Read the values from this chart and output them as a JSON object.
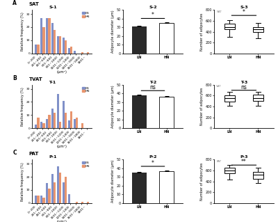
{
  "row_labels": [
    "A  SAT",
    "B  TVAT",
    "C  PAT"
  ],
  "row_letters": [
    "A",
    "B",
    "C"
  ],
  "row_tissues": [
    "SAT",
    "TVAT",
    "PAT"
  ],
  "col1_labels": [
    "S-1",
    "T-1",
    "P-1"
  ],
  "col2_labels": [
    "S-2",
    "T-2",
    "P-2"
  ],
  "col3_labels": [
    "S-3",
    "T-3",
    "P-3"
  ],
  "hist_categories": [
    "0~200",
    "201~400",
    "401~600",
    "601~800",
    "801~1000",
    "1001~1200",
    "1201~1400",
    "1401~1600",
    "1601~1800",
    "1801~"
  ],
  "LN_color": "#8090c8",
  "HN_color": "#e8956e",
  "hist_data": {
    "SAT": {
      "LN": [
        7,
        27,
        27,
        23,
        13,
        12,
        4,
        2,
        0,
        0
      ],
      "HN": [
        7,
        20,
        27,
        18,
        13,
        10,
        5,
        0,
        1,
        1
      ]
    },
    "TVAT": {
      "LN": [
        3,
        5,
        7,
        15,
        26,
        21,
        6,
        7,
        0,
        0
      ],
      "HN": [
        8,
        4,
        10,
        12,
        5,
        12,
        13,
        8,
        4,
        0
      ]
    },
    "PAT": {
      "LN": [
        6,
        6,
        15,
        22,
        28,
        16,
        7,
        0,
        0,
        0
      ],
      "HN": [
        6,
        4,
        11,
        16,
        23,
        20,
        0,
        1,
        1,
        1
      ]
    }
  },
  "bar_data": {
    "SAT": {
      "LN_mean": 31,
      "LN_err": 1.2,
      "HN_mean": 35,
      "HN_err": 0.8,
      "sig": "*",
      "ylim": [
        0,
        50
      ]
    },
    "TVAT": {
      "LN_mean": 38,
      "LN_err": 0.8,
      "HN_mean": 36,
      "HN_err": 1.2,
      "sig": "ns",
      "ylim": [
        0,
        50
      ]
    },
    "PAT": {
      "LN_mean": 35,
      "LN_err": 1.0,
      "HN_mean": 37,
      "HN_err": 0.8,
      "sig": "*",
      "ylim": [
        0,
        50
      ]
    }
  },
  "box_data": {
    "SAT": {
      "LN": {
        "median": 490,
        "q1": 440,
        "q3": 545,
        "whislo": 310,
        "whishi": 615
      },
      "HN": {
        "median": 440,
        "q1": 395,
        "q3": 490,
        "whislo": 285,
        "whishi": 555
      },
      "sig": "*",
      "ylim": [
        0,
        800
      ],
      "label": "SAT"
    },
    "TVAT": {
      "LN": {
        "median": 550,
        "q1": 490,
        "q3": 610,
        "whislo": 410,
        "whishi": 670
      },
      "HN": {
        "median": 560,
        "q1": 500,
        "q3": 620,
        "whislo": 415,
        "whishi": 675
      },
      "sig": "ns",
      "ylim": [
        0,
        800
      ],
      "label": "VAT"
    },
    "PAT": {
      "LN": {
        "median": 605,
        "q1": 545,
        "q3": 655,
        "whislo": 440,
        "whishi": 700
      },
      "HN": {
        "median": 520,
        "q1": 445,
        "q3": 580,
        "whislo": 365,
        "whishi": 645
      },
      "sig": "**",
      "ylim": [
        0,
        800
      ],
      "label": "PAT"
    }
  },
  "xlabel_hist": "(μm²)",
  "ylabel_hist": "Relative frequency (%)",
  "ylabel_bar": "Adipocyte diameter (μm)",
  "ylabel_box": "Number of adipocytes",
  "hist_yticks": [
    0,
    10,
    20,
    30
  ],
  "hist_ylim": [
    0,
    33
  ],
  "bar_yticks": [
    0,
    10,
    20,
    30,
    40,
    50
  ],
  "box_yticks": [
    0,
    200,
    400,
    600,
    800
  ]
}
